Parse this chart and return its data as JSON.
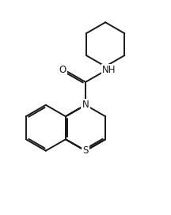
{
  "bg_color": "#ffffff",
  "line_color": "#1a1a1a",
  "line_width": 1.4,
  "font_size": 8.5,
  "figsize": [
    2.16,
    2.72
  ],
  "dpi": 100,
  "xlim": [
    0,
    10
  ],
  "ylim": [
    0,
    12.5
  ]
}
